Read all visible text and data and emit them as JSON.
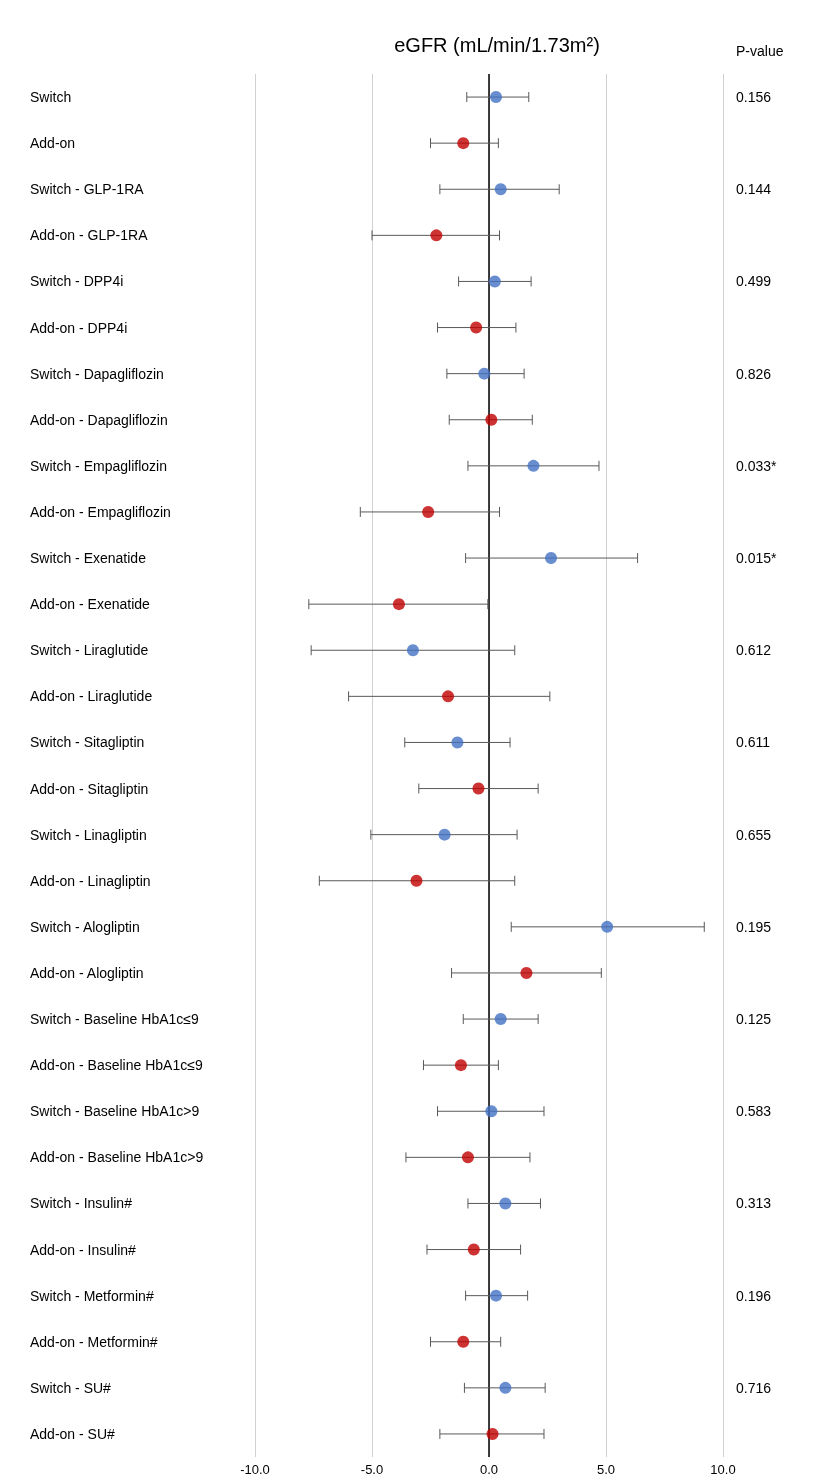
{
  "chart_data": {
    "type": "scatter",
    "orientation": "horizontal",
    "title": "eGFR (mL/min/1.73m²)",
    "categories": [
      "Switch",
      "Add-on",
      "Switch - GLP-1RA",
      "Add-on - GLP-1RA",
      "Switch - DPP4i",
      "Add-on - DPP4i",
      "Switch - Dapagliflozin",
      "Add-on - Dapagliflozin",
      "Switch - Empagliflozin",
      "Add-on - Empagliflozin",
      "Switch - Exenatide",
      "Add-on - Exenatide",
      "Switch - Liraglutide",
      "Add-on - Liraglutide",
      "Switch - Sitagliptin",
      "Add-on - Sitagliptin",
      "Switch - Linagliptin",
      "Add-on - Linagliptin",
      "Switch - Alogliptin",
      "Add-on - Alogliptin",
      "Switch - Baseline HbA1c≤9",
      "Add-on - Baseline HbA1c≤9",
      "Switch - Baseline HbA1c>9",
      "Add-on - Baseline HbA1c>9",
      "Switch - Insulin#",
      "Add-on - Insulin#",
      "Switch - Metformin#",
      "Add-on - Metformin#",
      "Switch - SU#",
      "Add-on - SU#"
    ],
    "series": [
      {
        "color": "#4472c4",
        "values": [
          0.3,
          null,
          0.5,
          null,
          0.25,
          null,
          -0.2,
          null,
          1.9,
          null,
          2.65,
          null,
          -3.25,
          null,
          -1.35,
          null,
          -1.9,
          null,
          5.05,
          null,
          0.5,
          null,
          0.1,
          null,
          0.7,
          null,
          0.3,
          null,
          0.7,
          null
        ],
        "errors": [
          [
            -0.95,
            1.7
          ],
          null,
          [
            -2.1,
            3.0
          ],
          null,
          [
            -1.3,
            1.8
          ],
          null,
          [
            -1.8,
            1.5
          ],
          null,
          [
            -0.9,
            4.7
          ],
          null,
          [
            -1.0,
            6.35
          ],
          null,
          [
            -7.6,
            1.1
          ],
          null,
          [
            -3.6,
            0.9
          ],
          null,
          [
            -5.05,
            1.2
          ],
          null,
          [
            0.95,
            9.2
          ],
          null,
          [
            -1.1,
            2.1
          ],
          null,
          [
            -2.2,
            2.35
          ],
          null,
          [
            -0.9,
            2.2
          ],
          null,
          [
            -1.0,
            1.65
          ],
          null,
          [
            -1.05,
            2.4
          ],
          null
        ]
      },
      {
        "color": "#c00000",
        "values": [
          null,
          -1.1,
          null,
          -2.25,
          null,
          -0.55,
          null,
          0.1,
          null,
          -2.6,
          null,
          -3.85,
          null,
          -1.75,
          null,
          -0.45,
          null,
          -3.1,
          null,
          1.6,
          null,
          -1.2,
          null,
          -0.9,
          null,
          -0.65,
          null,
          -1.1,
          null,
          0.15
        ],
        "errors": [
          null,
          [
            -2.5,
            0.4
          ],
          null,
          [
            -5.0,
            0.45
          ],
          null,
          [
            -2.2,
            1.15
          ],
          null,
          [
            -1.7,
            1.85
          ],
          null,
          [
            -5.5,
            0.45
          ],
          null,
          [
            -7.7,
            -0.05
          ],
          null,
          [
            -6.0,
            2.6
          ],
          null,
          [
            -3.0,
            2.1
          ],
          null,
          [
            -7.25,
            1.1
          ],
          null,
          [
            -1.6,
            4.8
          ],
          null,
          [
            -2.8,
            0.4
          ],
          null,
          [
            -3.55,
            1.75
          ],
          null,
          [
            -2.65,
            1.35
          ],
          null,
          [
            -2.5,
            0.5
          ],
          null,
          [
            -2.1,
            2.35
          ]
        ]
      }
    ],
    "xlim": [
      -10,
      10
    ],
    "xticks": [
      {
        "value": -10,
        "label": "-10.0"
      },
      {
        "value": -5,
        "label": "-5.0"
      },
      {
        "value": 0,
        "label": "0.0"
      },
      {
        "value": 5,
        "label": "5.0"
      },
      {
        "value": 10,
        "label": "10.0"
      }
    ],
    "ref_lines": [
      {
        "axis": "x",
        "value": 0,
        "color": "#000000"
      }
    ],
    "grid": "x",
    "marker": "circle",
    "annotations": [
      "P-value",
      "0.156",
      "0.144",
      "0.499",
      "0.826",
      "0.033*",
      "0.015*",
      "0.612",
      "0.611",
      "0.655",
      "0.195",
      "0.125",
      "0.583",
      "0.313",
      "0.196",
      "0.716"
    ]
  }
}
